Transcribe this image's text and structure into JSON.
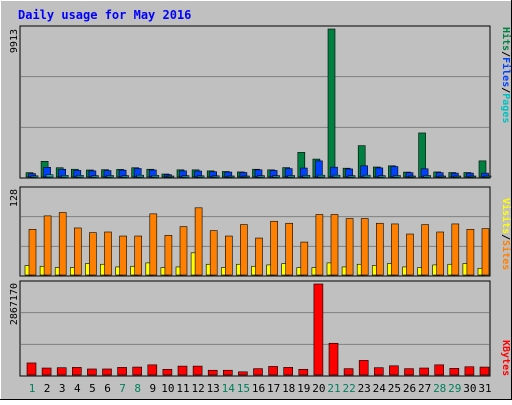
{
  "chart_data": [
    {
      "type": "bar",
      "title": "Daily usage for May 2016",
      "ylabel_max": "9913",
      "legend": [
        "Pages",
        "Files",
        "Hits"
      ],
      "legend_colors": {
        "Pages": "#00c0c0",
        "Files": "#0040ff",
        "Hits": "#008040"
      },
      "categories": [
        "1",
        "2",
        "3",
        "4",
        "5",
        "6",
        "7",
        "8",
        "9",
        "10",
        "11",
        "12",
        "13",
        "14",
        "15",
        "16",
        "17",
        "18",
        "19",
        "20",
        "21",
        "22",
        "23",
        "24",
        "25",
        "26",
        "27",
        "28",
        "29",
        "30",
        "31"
      ],
      "ylim": [
        0,
        9913
      ],
      "series": [
        {
          "name": "Hits",
          "color": "#008040",
          "values": [
            290,
            1050,
            620,
            520,
            470,
            490,
            510,
            620,
            520,
            200,
            480,
            480,
            410,
            370,
            340,
            520,
            480,
            630,
            1650,
            1200,
            9913,
            590,
            2100,
            670,
            750,
            330,
            2950,
            340,
            300,
            300,
            1080
          ]
        },
        {
          "name": "Files",
          "color": "#0040ff",
          "values": [
            230,
            650,
            520,
            440,
            410,
            430,
            460,
            570,
            470,
            160,
            410,
            400,
            350,
            330,
            300,
            480,
            440,
            560,
            600,
            1080,
            660,
            540,
            750,
            610,
            700,
            290,
            550,
            290,
            260,
            260,
            260
          ]
        },
        {
          "name": "Pages",
          "color": "#00c0c0",
          "values": [
            80,
            150,
            110,
            110,
            90,
            100,
            90,
            120,
            110,
            50,
            90,
            80,
            80,
            70,
            60,
            90,
            90,
            100,
            110,
            120,
            120,
            90,
            120,
            90,
            100,
            50,
            100,
            60,
            50,
            40,
            40
          ]
        }
      ]
    },
    {
      "type": "bar",
      "ylabel_max": "128",
      "legend": [
        "Sites",
        "Visits"
      ],
      "legend_colors": {
        "Sites": "#ff8000",
        "Visits": "#ffff00"
      },
      "categories": [
        "1",
        "2",
        "3",
        "4",
        "5",
        "6",
        "7",
        "8",
        "9",
        "10",
        "11",
        "12",
        "13",
        "14",
        "15",
        "16",
        "17",
        "18",
        "19",
        "20",
        "21",
        "22",
        "23",
        "24",
        "25",
        "26",
        "27",
        "28",
        "29",
        "30",
        "31"
      ],
      "ylim": [
        0,
        128
      ],
      "series": [
        {
          "name": "Sites",
          "color": "#ff8000",
          "values": [
            68,
            88,
            93,
            70,
            63,
            64,
            58,
            58,
            91,
            59,
            72,
            100,
            66,
            58,
            75,
            55,
            80,
            77,
            49,
            90,
            90,
            84,
            84,
            77,
            76,
            61,
            75,
            64,
            76,
            68,
            69
          ]
        },
        {
          "name": "Visits",
          "color": "#ffff00",
          "values": [
            14,
            13,
            11,
            11,
            17,
            16,
            12,
            13,
            18,
            11,
            12,
            33,
            16,
            11,
            16,
            13,
            15,
            17,
            11,
            11,
            18,
            12,
            16,
            14,
            17,
            12,
            11,
            15,
            16,
            17,
            10
          ]
        }
      ]
    },
    {
      "type": "bar",
      "ylabel_max": "2867170",
      "legend": [
        "KBytes"
      ],
      "legend_colors": {
        "KBytes": "#ff0000"
      },
      "categories": [
        "1",
        "2",
        "3",
        "4",
        "5",
        "6",
        "7",
        "8",
        "9",
        "10",
        "11",
        "12",
        "13",
        "14",
        "15",
        "16",
        "17",
        "18",
        "19",
        "20",
        "21",
        "22",
        "23",
        "24",
        "25",
        "26",
        "27",
        "28",
        "29",
        "30",
        "31"
      ],
      "ylim": [
        0,
        2867170
      ],
      "series": [
        {
          "name": "KBytes",
          "color": "#ff0000",
          "values": [
            380000,
            220000,
            230000,
            240000,
            190000,
            190000,
            240000,
            250000,
            320000,
            180000,
            280000,
            280000,
            150000,
            150000,
            100000,
            200000,
            270000,
            240000,
            180000,
            2867170,
            1000000,
            200000,
            460000,
            230000,
            290000,
            200000,
            220000,
            320000,
            210000,
            260000,
            250000
          ]
        }
      ]
    }
  ],
  "weekend_days": [
    1,
    7,
    8,
    14,
    15,
    21,
    22,
    28,
    29
  ],
  "colors": {
    "weekday_label": "#000000",
    "weekend_label": "#00805c",
    "plot_bg": "#c0c0c0",
    "title": "#0000ff"
  }
}
